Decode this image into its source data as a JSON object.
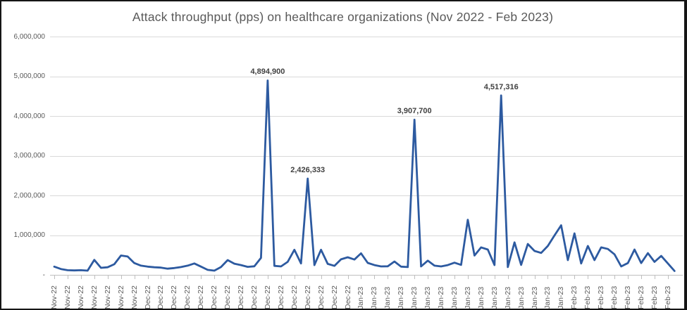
{
  "title": "Attack throughput (pps) on healthcare organizations (Nov 2022 - Feb 2023)",
  "colors": {
    "line": "#2d5aa0",
    "title_text": "#595959",
    "axis_text": "#595959",
    "gridline": "#d9d9d9",
    "axis_line": "#bfbfbf",
    "data_label_text": "#404040",
    "border": "#151515",
    "background": "#ffffff"
  },
  "chart_data": {
    "type": "line",
    "title": "Attack throughput (pps) on healthcare organizations (Nov 2022 - Feb 2023)",
    "xlabel": "",
    "ylabel": "",
    "ylim": [
      0,
      6000000
    ],
    "grid": "horizontal",
    "legend": "none",
    "y_ticks": [
      {
        "value": 6000000,
        "label": "6,000,000"
      },
      {
        "value": 5000000,
        "label": "5,000,000"
      },
      {
        "value": 4000000,
        "label": "4,000,000"
      },
      {
        "value": 3000000,
        "label": "3,000,000"
      },
      {
        "value": 2000000,
        "label": "2,000,000"
      },
      {
        "value": 1000000,
        "label": "1,000,000"
      },
      {
        "value": 0,
        "label": "-"
      }
    ],
    "x_labels": [
      "Nov-22",
      "Nov-22",
      "Nov-22",
      "Nov-22",
      "Nov-22",
      "Nov-22",
      "Nov-22",
      "Dec-22",
      "Dec-22",
      "Dec-22",
      "Dec-22",
      "Dec-22",
      "Dec-22",
      "Dec-22",
      "Dec-22",
      "Dec-22",
      "Dec-22",
      "Dec-22",
      "Dec-22",
      "Dec-22",
      "Dec-22",
      "Dec-22",
      "Dec-22",
      "Jan-23",
      "Jan-23",
      "Jan-23",
      "Jan-23",
      "Jan-23",
      "Jan-23",
      "Jan-23",
      "Jan-23",
      "Jan-23",
      "Jan-23",
      "Jan-23",
      "Jan-23",
      "Jan-23",
      "Jan-23",
      "Jan-23",
      "Jan-23",
      "Feb-23",
      "Feb-23",
      "Feb-23",
      "Feb-23",
      "Feb-23",
      "Feb-23",
      "Feb-23",
      "Feb-23"
    ],
    "x_label_every_n_points": 2,
    "values": [
      210000,
      150000,
      120000,
      115000,
      120000,
      110000,
      380000,
      180000,
      195000,
      270000,
      490000,
      465000,
      300000,
      235000,
      210000,
      195000,
      185000,
      160000,
      175000,
      200000,
      235000,
      290000,
      210000,
      130000,
      110000,
      200000,
      375000,
      285000,
      250000,
      205000,
      220000,
      430000,
      4894900,
      230000,
      215000,
      330000,
      635000,
      290000,
      2426333,
      250000,
      635000,
      280000,
      230000,
      395000,
      445000,
      390000,
      545000,
      305000,
      250000,
      215000,
      220000,
      340000,
      210000,
      200000,
      3907700,
      215000,
      360000,
      235000,
      215000,
      250000,
      310000,
      255000,
      1390000,
      490000,
      695000,
      640000,
      250000,
      4517316,
      200000,
      820000,
      255000,
      780000,
      605000,
      555000,
      730000,
      995000,
      1250000,
      375000,
      1048000,
      290000,
      730000,
      375000,
      695000,
      655000,
      520000,
      215000,
      300000,
      640000,
      300000,
      550000,
      330000,
      480000,
      290000,
      100000
    ],
    "annotations": [
      {
        "index": 32,
        "value": 4894900,
        "label": "4,894,900"
      },
      {
        "index": 38,
        "value": 2426333,
        "label": "2,426,333"
      },
      {
        "index": 54,
        "value": 3907700,
        "label": "3,907,700"
      },
      {
        "index": 67,
        "value": 4517316,
        "label": "4,517,316"
      }
    ]
  }
}
